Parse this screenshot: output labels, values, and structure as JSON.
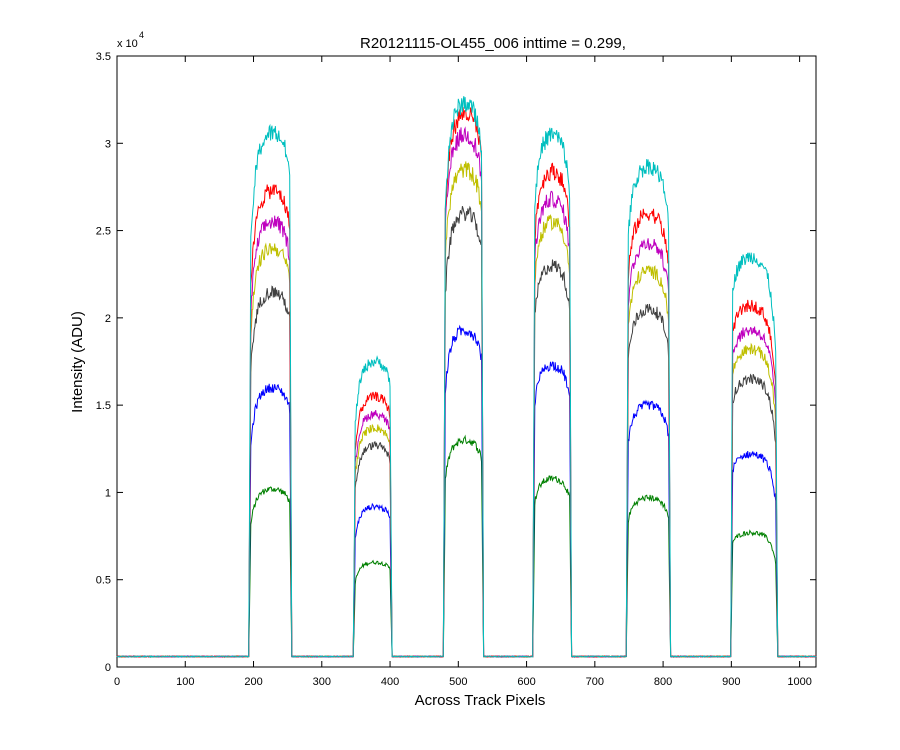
{
  "chart_data": {
    "type": "line",
    "title": "R20121115-OL455_006 inttime = 0.299,",
    "xlabel": "Across Track Pixels",
    "ylabel": "Intensity (ADU)",
    "y_multiplier_label": "x 10",
    "y_multiplier_exponent": "4",
    "xlim": [
      0,
      1024
    ],
    "ylim": [
      0,
      35000
    ],
    "grid": false,
    "legend": "none",
    "x_ticks": [
      0,
      100,
      200,
      300,
      400,
      500,
      600,
      700,
      800,
      900,
      1000
    ],
    "x_tick_labels": [
      "0",
      "100",
      "200",
      "300",
      "400",
      "500",
      "600",
      "700",
      "800",
      "900",
      "1000"
    ],
    "y_ticks": [
      0,
      5000,
      10000,
      15000,
      20000,
      25000,
      30000,
      35000
    ],
    "y_tick_labels": [
      "0",
      "0.5",
      "1",
      "1.5",
      "2",
      "2.5",
      "3",
      "3.5"
    ],
    "baseline": 600,
    "peaks": [
      {
        "x_start": 193,
        "x_end": 256,
        "x_center": 228
      },
      {
        "x_start": 346,
        "x_end": 403,
        "x_center": 378
      },
      {
        "x_start": 478,
        "x_end": 537,
        "x_center": 510
      },
      {
        "x_start": 609,
        "x_end": 666,
        "x_center": 638
      },
      {
        "x_start": 746,
        "x_end": 811,
        "x_center": 779
      },
      {
        "x_start": 899,
        "x_end": 968,
        "x_center": 929
      }
    ],
    "series": [
      {
        "color": "#008000",
        "peak_values": [
          10200,
          6000,
          13000,
          10800,
          9700,
          7700
        ]
      },
      {
        "color": "#0000ff",
        "peak_values": [
          16000,
          9200,
          19300,
          17300,
          15000,
          12200
        ]
      },
      {
        "color": "#404040",
        "peak_values": [
          21500,
          12700,
          26000,
          23000,
          20500,
          16500
        ]
      },
      {
        "color": "#bfbf00",
        "peak_values": [
          24000,
          13700,
          28500,
          25500,
          22700,
          18200
        ]
      },
      {
        "color": "#bf00bf",
        "peak_values": [
          25500,
          14500,
          30500,
          26800,
          24300,
          19300
        ]
      },
      {
        "color": "#ff0000",
        "peak_values": [
          27300,
          15500,
          31700,
          28400,
          26000,
          20700
        ]
      },
      {
        "color": "#00bfbf",
        "peak_values": [
          30600,
          17500,
          32300,
          30500,
          28700,
          23500
        ]
      }
    ]
  }
}
